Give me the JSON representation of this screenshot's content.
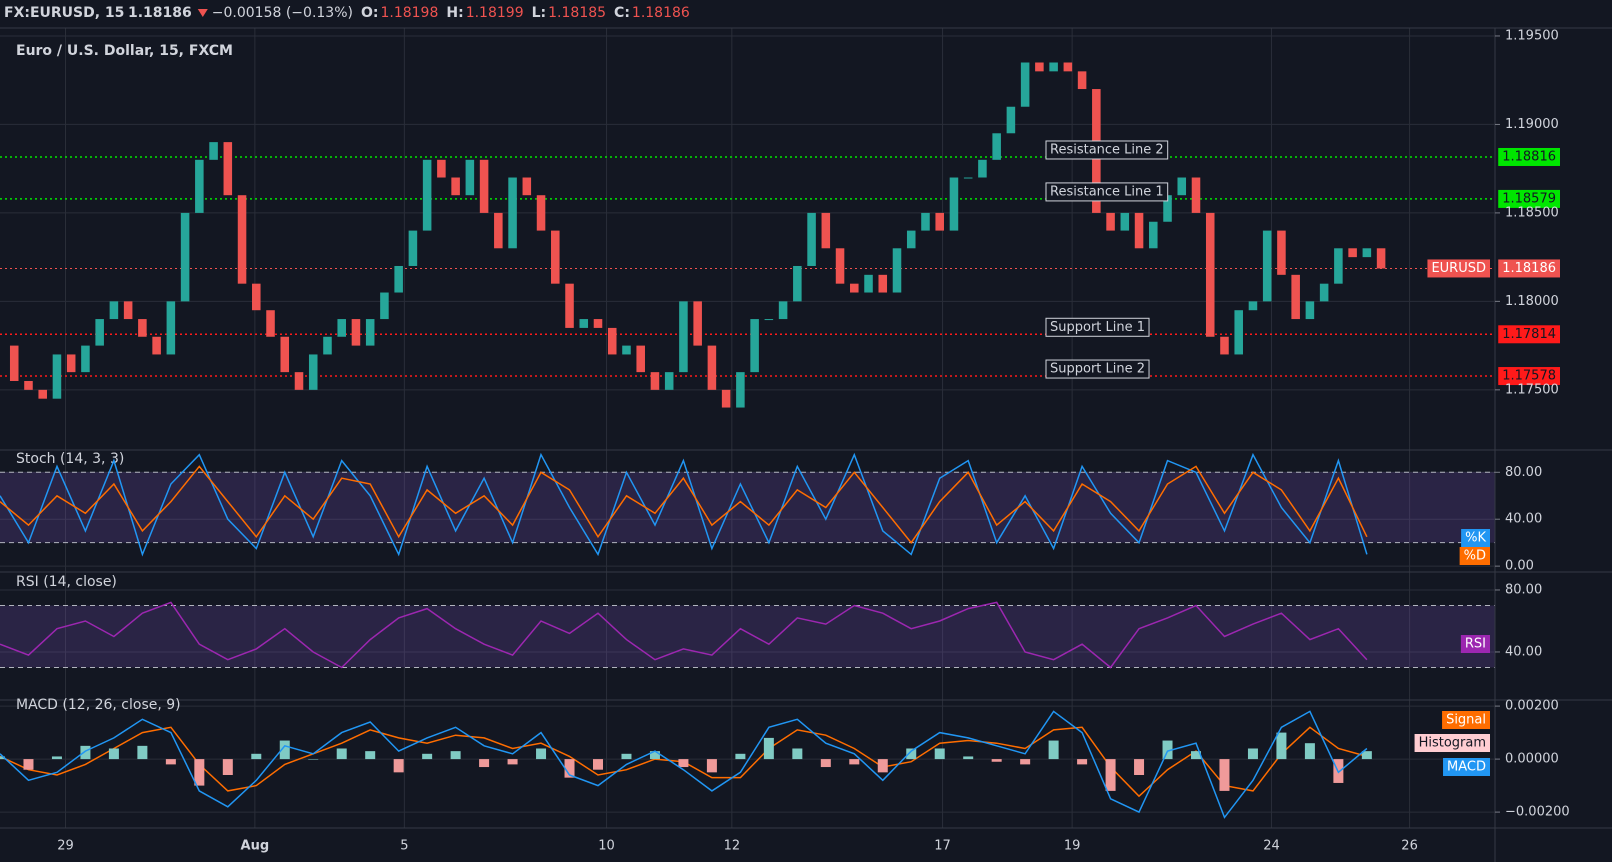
{
  "header": {
    "symbol": "FX:EURUSD, 15",
    "last": "1.18186",
    "change": "−0.00158 (−0.13%)",
    "open": {
      "label": "O:",
      "value": "1.18198"
    },
    "high": {
      "label": "H:",
      "value": "1.18199"
    },
    "low": {
      "label": "L:",
      "value": "1.18185"
    },
    "close": {
      "label": "C:",
      "value": "1.18186"
    }
  },
  "chart_data": [
    {
      "type": "candlestick",
      "title": "Euro / U.S. Dollar, 15, FXCM",
      "up_color": "#26a69a",
      "down_color": "#ef5350",
      "values": [
        1.1775,
        1.1755,
        1.175,
        1.1745,
        1.177,
        1.176,
        1.1775,
        1.179,
        1.18,
        1.179,
        1.178,
        1.177,
        1.18,
        1.185,
        1.188,
        1.189,
        1.186,
        1.181,
        1.1795,
        1.178,
        1.176,
        1.175,
        1.177,
        1.178,
        1.179,
        1.1775,
        1.179,
        1.1805,
        1.182,
        1.184,
        1.188,
        1.187,
        1.186,
        1.188,
        1.185,
        1.183,
        1.187,
        1.186,
        1.184,
        1.181,
        1.1785,
        1.179,
        1.1785,
        1.177,
        1.1775,
        1.176,
        1.175,
        1.176,
        1.18,
        1.1775,
        1.175,
        1.174,
        1.176,
        1.179,
        1.179,
        1.18,
        1.182,
        1.185,
        1.183,
        1.181,
        1.1805,
        1.1815,
        1.1805,
        1.183,
        1.184,
        1.185,
        1.184,
        1.187,
        1.187,
        1.188,
        1.1895,
        1.191,
        1.1935,
        1.193,
        1.1935,
        1.193,
        1.192,
        1.185,
        1.184,
        1.185,
        1.183,
        1.1845,
        1.186,
        1.187,
        1.185,
        1.178,
        1.177,
        1.1795,
        1.18,
        1.184,
        1.1815,
        1.179,
        1.18,
        1.181,
        1.183,
        1.1825,
        1.183,
        1.18186
      ],
      "ylim": [
        1.1716,
        1.19545
      ],
      "yticks": [
        {
          "value": 1.175,
          "label": "1.17500"
        },
        {
          "value": 1.18,
          "label": "1.18000"
        },
        {
          "value": 1.185,
          "label": "1.18500"
        },
        {
          "value": 1.19,
          "label": "1.19000"
        },
        {
          "value": 1.195,
          "label": "1.19500"
        }
      ],
      "grid": true,
      "levels": [
        {
          "name": "Resistance Line 2",
          "value": 1.18816,
          "color": "#00e600"
        },
        {
          "name": "Resistance Line 1",
          "value": 1.18579,
          "color": "#00e600"
        },
        {
          "name": "Support Line 1",
          "value": 1.17814,
          "color": "#ff1a1a"
        },
        {
          "name": "Support Line 2",
          "value": 1.17578,
          "color": "#ff1a1a"
        }
      ],
      "last": {
        "name": "EURUSD",
        "value": 1.18186,
        "color": "#ef5350"
      }
    },
    {
      "type": "line",
      "title": "Stoch (14, 3, 3)",
      "x": [
        0,
        2,
        4,
        6,
        8,
        10,
        12,
        14,
        16,
        18,
        20,
        22,
        24,
        26,
        28,
        30,
        32,
        34,
        36,
        38,
        40,
        42,
        44,
        46,
        48,
        50,
        52,
        54,
        56,
        58,
        60,
        62,
        64,
        66,
        68,
        70,
        72,
        74,
        76,
        78,
        80,
        82,
        84,
        86,
        88,
        90,
        92,
        94,
        96
      ],
      "series": [
        {
          "name": "%K",
          "color": "#2196f3",
          "values": [
            60,
            20,
            85,
            30,
            90,
            10,
            70,
            95,
            40,
            15,
            80,
            25,
            90,
            60,
            10,
            85,
            30,
            75,
            20,
            95,
            50,
            10,
            80,
            35,
            90,
            15,
            70,
            20,
            85,
            40,
            95,
            30,
            10,
            75,
            90,
            20,
            60,
            15,
            85,
            45,
            20,
            90,
            80,
            30,
            95,
            50,
            20,
            90,
            10
          ]
        },
        {
          "name": "%D",
          "color": "#ff6d00",
          "values": [
            55,
            35,
            60,
            45,
            70,
            30,
            55,
            85,
            55,
            25,
            60,
            40,
            75,
            70,
            25,
            65,
            45,
            60,
            35,
            80,
            65,
            25,
            60,
            45,
            75,
            35,
            55,
            35,
            65,
            50,
            80,
            50,
            20,
            55,
            80,
            35,
            55,
            30,
            70,
            55,
            30,
            70,
            85,
            45,
            80,
            65,
            30,
            75,
            25
          ]
        }
      ],
      "bands": [
        20,
        80
      ],
      "band_color": "#7e57c2",
      "ylim": [
        -5,
        99
      ],
      "yticks": [
        {
          "value": 0,
          "label": "0.00"
        },
        {
          "value": 40,
          "label": "40.00"
        },
        {
          "value": 80,
          "label": "80.00"
        }
      ],
      "grid": true
    },
    {
      "type": "line",
      "title": "RSI (14, close)",
      "x": [
        0,
        2,
        4,
        6,
        8,
        10,
        12,
        14,
        16,
        18,
        20,
        22,
        24,
        26,
        28,
        30,
        32,
        34,
        36,
        38,
        40,
        42,
        44,
        46,
        48,
        50,
        52,
        54,
        56,
        58,
        60,
        62,
        64,
        66,
        68,
        70,
        72,
        74,
        76,
        78,
        80,
        82,
        84,
        86,
        88,
        90,
        92,
        94,
        96
      ],
      "series": [
        {
          "name": "RSI",
          "color": "#9c27b0",
          "values": [
            45,
            38,
            55,
            60,
            50,
            65,
            72,
            45,
            35,
            42,
            55,
            40,
            30,
            48,
            62,
            68,
            55,
            45,
            38,
            60,
            52,
            65,
            48,
            35,
            42,
            38,
            55,
            45,
            62,
            58,
            70,
            65,
            55,
            60,
            68,
            72,
            40,
            35,
            45,
            30,
            55,
            62,
            70,
            50,
            58,
            65,
            48,
            55,
            35
          ]
        }
      ],
      "bands": [
        30,
        70
      ],
      "band_color": "#7e57c2",
      "ylim": [
        9,
        91.6
      ],
      "yticks": [
        {
          "value": 40,
          "label": "40.00"
        },
        {
          "value": 80,
          "label": "80.00"
        }
      ],
      "grid": true
    },
    {
      "type": "macd",
      "title": "MACD (12, 26, close, 9)",
      "x": [
        0,
        2,
        4,
        6,
        8,
        10,
        12,
        14,
        16,
        18,
        20,
        22,
        24,
        26,
        28,
        30,
        32,
        34,
        36,
        38,
        40,
        42,
        44,
        46,
        48,
        50,
        52,
        54,
        56,
        58,
        60,
        62,
        64,
        66,
        68,
        70,
        72,
        74,
        76,
        78,
        80,
        82,
        84,
        86,
        88,
        90,
        92,
        94,
        96
      ],
      "series": [
        {
          "name": "Signal",
          "color": "#ff6d00",
          "values": [
            0.0001,
            -0.0004,
            -0.0006,
            -0.0002,
            0.0004,
            0.001,
            0.0012,
            -0.0002,
            -0.0012,
            -0.001,
            -0.0002,
            0.0002,
            0.0006,
            0.0011,
            0.0008,
            0.0006,
            0.0009,
            0.0008,
            0.0004,
            0.0006,
            0.0001,
            -0.0006,
            -0.0004,
            0,
            -0.0001,
            -0.0007,
            -0.0007,
            0.0004,
            0.0011,
            0.0009,
            0.0004,
            -0.0003,
            -0.0001,
            0.0006,
            0.0007,
            0.0006,
            0.0004,
            0.0011,
            0.0012,
            -0.0003,
            -0.0014,
            -0.0004,
            0.0003,
            -0.001,
            -0.0012,
            0.0002,
            0.0012,
            0.0004,
            0.0001
          ]
        },
        {
          "name": "Histogram",
          "color": "#ffcdd2",
          "up_color": "#80cbc4",
          "down_color": "#ef9a9a",
          "bars": true,
          "values": [
            0.0001,
            -0.0004,
            0.0001,
            0.0005,
            0.0004,
            0.0005,
            -0.0002,
            -0.001,
            -0.0006,
            0.0002,
            0.0007,
            0,
            0.0004,
            0.0003,
            -0.0005,
            0.0002,
            0.0003,
            -0.0003,
            -0.0002,
            0.0004,
            -0.0007,
            -0.0004,
            0.0002,
            0.0003,
            -0.0003,
            -0.0005,
            0.0002,
            0.0008,
            0.0004,
            -0.0003,
            -0.0002,
            -0.0005,
            0.0004,
            0.0004,
            0.0001,
            -0.0001,
            -0.0002,
            0.0007,
            -0.0002,
            -0.0012,
            -0.0006,
            0.0007,
            0.0003,
            -0.0012,
            0.0004,
            0.001,
            0.0006,
            -0.0009,
            0.0003
          ]
        },
        {
          "name": "MACD",
          "color": "#2196f3",
          "values": [
            0.0002,
            -0.0008,
            -0.0005,
            0.0003,
            0.0008,
            0.0015,
            0.001,
            -0.0012,
            -0.0018,
            -0.0008,
            0.0005,
            0.0002,
            0.001,
            0.0014,
            0.0003,
            0.0008,
            0.0012,
            0.0005,
            0.0002,
            0.001,
            -0.0006,
            -0.001,
            -0.0002,
            0.0003,
            -0.0004,
            -0.0012,
            -0.0005,
            0.0012,
            0.0015,
            0.0006,
            0.0002,
            -0.0008,
            0.0003,
            0.001,
            0.0008,
            0.0005,
            0.0002,
            0.0018,
            0.001,
            -0.0015,
            -0.002,
            0.0003,
            0.0006,
            -0.0022,
            -0.0008,
            0.0012,
            0.0018,
            -0.0005,
            0.0004
          ]
        }
      ],
      "ylim": [
        -0.0026,
        0.00223
      ],
      "yticks": [
        {
          "value": -0.002,
          "label": "−0.00200"
        },
        {
          "value": 0,
          "label": "0.00000"
        },
        {
          "value": 0.002,
          "label": "0.00200"
        }
      ],
      "grid": true,
      "xlim": [
        0,
        105
      ],
      "xticks": [
        {
          "value": 4.6,
          "label": "29"
        },
        {
          "value": 17.9,
          "label": "Aug"
        },
        {
          "value": 28.4,
          "label": "5"
        },
        {
          "value": 42.6,
          "label": "10"
        },
        {
          "value": 51.4,
          "label": "12"
        },
        {
          "value": 66.2,
          "label": "17"
        },
        {
          "value": 75.3,
          "label": "19"
        },
        {
          "value": 89.3,
          "label": "24"
        },
        {
          "value": 99,
          "label": "26"
        }
      ]
    }
  ]
}
